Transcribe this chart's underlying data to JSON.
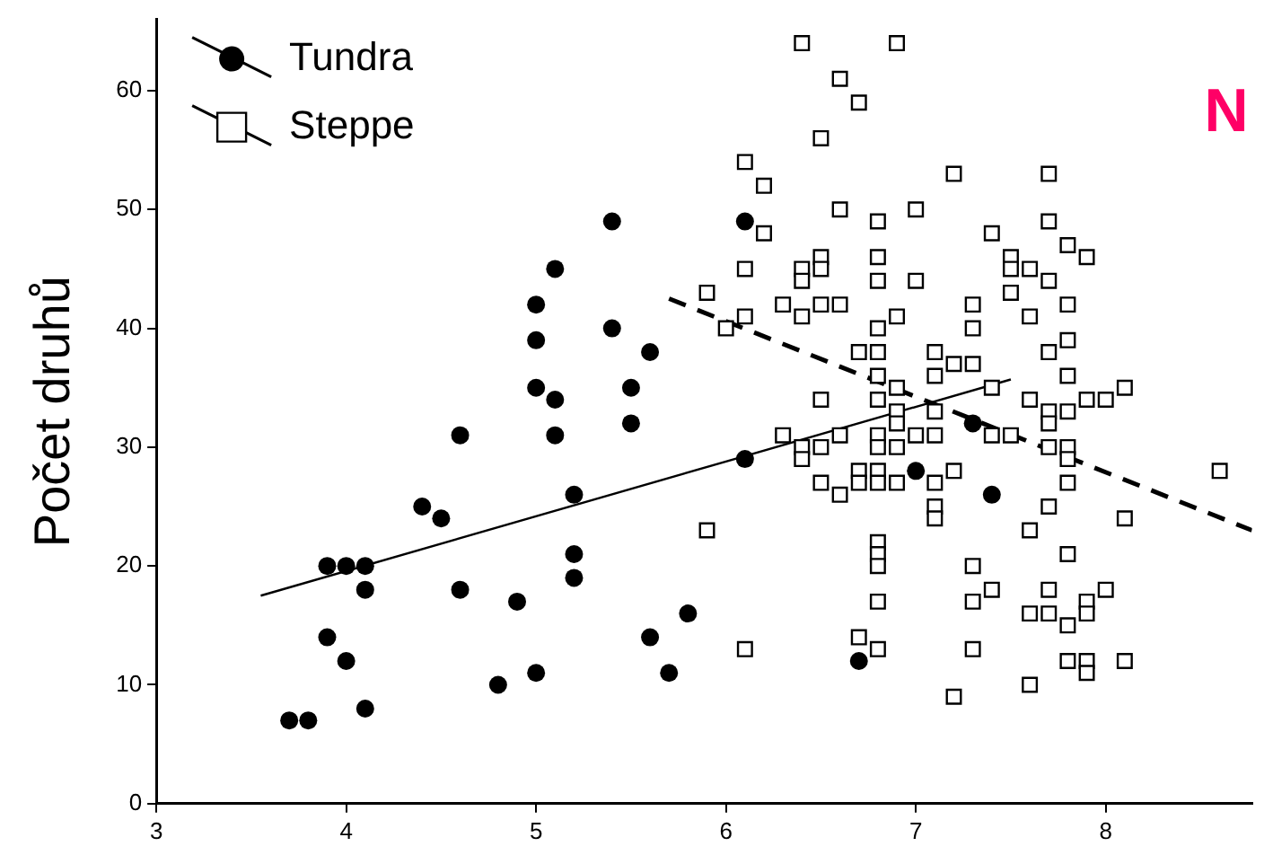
{
  "chart_data": {
    "type": "scatter",
    "ylabel": "Počet druhů",
    "annotations": [
      "N"
    ],
    "xlim": [
      3,
      8.77
    ],
    "xticks": [
      3,
      4,
      5,
      6,
      7,
      8
    ],
    "ylim": [
      0,
      66
    ],
    "yticks": [
      0,
      10,
      20,
      30,
      40,
      50,
      60
    ],
    "grid": false,
    "legend": "top left",
    "series": [
      {
        "name": "Tundra",
        "marker": "circle",
        "color": "#000000",
        "x": [
          3.7,
          3.8,
          3.9,
          4.0,
          4.1,
          3.9,
          4.0,
          4.1,
          4.1,
          4.4,
          4.5,
          4.6,
          4.6,
          4.8,
          4.9,
          5.0,
          5.0,
          5.0,
          5.0,
          5.1,
          5.1,
          5.1,
          5.2,
          5.2,
          5.2,
          5.4,
          5.4,
          5.5,
          5.5,
          5.6,
          5.6,
          5.7,
          5.8,
          6.1,
          6.1,
          7.0,
          7.4,
          6.7,
          7.3
        ],
        "values": [
          7,
          7,
          14,
          12,
          8,
          20,
          20,
          20,
          18,
          25,
          24,
          31,
          18,
          10,
          17,
          11,
          35,
          39,
          42,
          45,
          34,
          31,
          26,
          21,
          19,
          49,
          40,
          35,
          32,
          38,
          14,
          11,
          16,
          49,
          29,
          28,
          26,
          12,
          32
        ]
      },
      {
        "name": "Steppe",
        "marker": "square",
        "color": "#000000",
        "x": [
          6.4,
          6.9,
          6.6,
          6.7,
          6.5,
          6.1,
          7.2,
          7.7,
          6.2,
          6.6,
          7.0,
          6.8,
          6.2,
          7.4,
          7.7,
          7.8,
          7.9,
          6.5,
          6.8,
          6.1,
          6.4,
          6.5,
          6.4,
          6.8,
          7.0,
          7.5,
          7.5,
          7.6,
          7.7,
          7.5,
          5.9,
          6.3,
          6.5,
          6.6,
          6.4,
          6.1,
          6.0,
          6.9,
          6.8,
          7.3,
          7.3,
          7.6,
          7.8,
          7.8,
          7.7,
          6.7,
          6.8,
          7.1,
          7.2,
          7.3,
          6.8,
          7.1,
          7.8,
          6.9,
          7.4,
          6.5,
          6.8,
          7.6,
          7.9,
          8.0,
          8.1,
          6.9,
          7.1,
          7.7,
          7.8,
          6.9,
          7.7,
          7.4,
          7.5,
          6.3,
          6.6,
          6.8,
          7.0,
          7.1,
          6.4,
          6.5,
          6.8,
          6.9,
          6.4,
          7.7,
          7.8,
          7.8,
          6.7,
          6.8,
          7.2,
          6.5,
          6.7,
          6.8,
          6.9,
          7.1,
          7.8,
          6.6,
          7.1,
          7.1,
          7.7,
          8.6,
          5.9,
          7.6,
          8.1,
          6.8,
          6.8,
          6.8,
          7.8,
          7.3,
          7.4,
          7.7,
          8.0,
          6.8,
          7.3,
          7.9,
          7.6,
          7.7,
          7.9,
          7.8,
          6.7,
          6.1,
          6.8,
          7.3,
          7.8,
          7.9,
          7.9,
          8.1,
          7.6,
          7.2
        ],
        "values": [
          64,
          64,
          61,
          59,
          56,
          54,
          53,
          53,
          52,
          50,
          50,
          49,
          48,
          48,
          49,
          47,
          46,
          46,
          46,
          45,
          45,
          45,
          44,
          44,
          44,
          46,
          45,
          45,
          44,
          43,
          43,
          42,
          42,
          42,
          41,
          41,
          40,
          41,
          40,
          42,
          40,
          41,
          42,
          39,
          38,
          38,
          38,
          38,
          37,
          37,
          36,
          36,
          36,
          35,
          35,
          34,
          34,
          34,
          34,
          34,
          35,
          33,
          33,
          33,
          33,
          32,
          32,
          31,
          31,
          31,
          31,
          31,
          31,
          31,
          30,
          30,
          30,
          30,
          29,
          30,
          30,
          29,
          28,
          28,
          28,
          27,
          27,
          27,
          27,
          27,
          27,
          26,
          25,
          24,
          25,
          28,
          23,
          23,
          24,
          22,
          21,
          20,
          21,
          20,
          18,
          18,
          18,
          17,
          17,
          17,
          16,
          16,
          16,
          15,
          14,
          13,
          13,
          13,
          12,
          12,
          11,
          12,
          10,
          9
        ]
      },
      {
        "type": "line",
        "line_style": "solid",
        "color": "#000000",
        "x": [
          3.55,
          7.5
        ],
        "values": [
          17.5,
          35.7
        ]
      },
      {
        "type": "line",
        "line_style": "dashed",
        "color": "#000000",
        "x": [
          5.7,
          8.77
        ],
        "values": [
          42.5,
          23
        ]
      }
    ]
  }
}
